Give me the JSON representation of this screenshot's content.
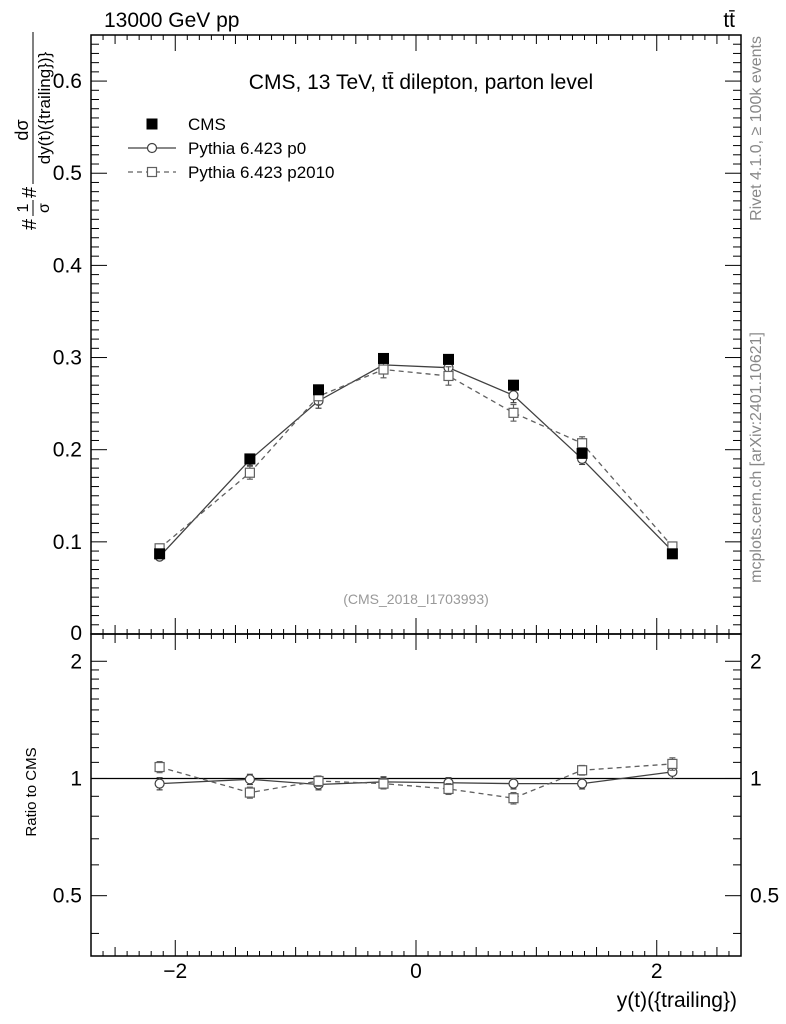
{
  "header": {
    "left": "13000 GeV pp",
    "right": "tt̄"
  },
  "side_labels": {
    "rivet": "Rivet 4.1.0, ≥ 100k events",
    "mcplots": "mcplots.cern.ch [arXiv:2401.10621]"
  },
  "chart_data": [
    {
      "type": "line",
      "title": "CMS, 13 TeV, tt̄ dilepton, parton level",
      "watermark": "(CMS_2018_I1703993)",
      "ylabel_prefix": "#",
      "ylabel_frac1_num": "1",
      "ylabel_frac1_den": "σ",
      "ylabel_mid": "#",
      "ylabel_frac2_num": "dσ",
      "ylabel_frac2_den": "dy(t)({trailing})}",
      "xlim": [
        -2.7,
        2.7
      ],
      "ylim": [
        0,
        0.65
      ],
      "xticks": [
        -2,
        0,
        2
      ],
      "xtick_labels": [
        "−2",
        "0",
        "2"
      ],
      "yticks": [
        0.1,
        0.2,
        0.3,
        0.4,
        0.5,
        0.6
      ],
      "ytick_labels": [
        "0.1",
        "0.2",
        "0.3",
        "0.4",
        "0.5",
        "0.6"
      ],
      "y_zero_label": "0",
      "legend_position": "top-left",
      "series": [
        {
          "name": "CMS",
          "style": "marker-only",
          "marker": "filled-square",
          "color": "#000000",
          "x": [
            -2.13,
            -1.38,
            -0.81,
            -0.27,
            0.27,
            0.81,
            1.38,
            2.13
          ],
          "values": [
            0.087,
            0.19,
            0.265,
            0.299,
            0.298,
            0.27,
            0.196,
            0.087
          ],
          "errors": [
            0.002,
            0.003,
            0.004,
            0.004,
            0.004,
            0.004,
            0.003,
            0.002
          ]
        },
        {
          "name": "Pythia 6.423 p0",
          "style": "solid",
          "marker": "open-circle",
          "color": "#404040",
          "x": [
            -2.13,
            -1.38,
            -0.81,
            -0.27,
            0.27,
            0.81,
            1.38,
            2.13
          ],
          "values": [
            0.084,
            0.189,
            0.253,
            0.292,
            0.289,
            0.259,
            0.19,
            0.09
          ],
          "errors": [
            0.003,
            0.006,
            0.008,
            0.009,
            0.009,
            0.008,
            0.006,
            0.004
          ]
        },
        {
          "name": "Pythia 6.423 p2010",
          "style": "dashed",
          "marker": "open-square",
          "color": "#606060",
          "x": [
            -2.13,
            -1.38,
            -0.81,
            -0.27,
            0.27,
            0.81,
            1.38,
            2.13
          ],
          "values": [
            0.093,
            0.175,
            0.258,
            0.287,
            0.28,
            0.24,
            0.207,
            0.095
          ],
          "errors": [
            0.003,
            0.007,
            0.009,
            0.009,
            0.01,
            0.009,
            0.007,
            0.004
          ]
        }
      ]
    },
    {
      "type": "line",
      "ylabel": "Ratio to CMS",
      "xlabel": "y(t)({trailing})",
      "xlim": [
        -2.7,
        2.7
      ],
      "ylim": [
        0.35,
        2.35
      ],
      "reference_line": 1,
      "xticks": [
        -2,
        0,
        2
      ],
      "xtick_labels": [
        "−2",
        "0",
        "2"
      ],
      "yticks": [
        0.5,
        1,
        2
      ],
      "ytick_labels": [
        "0.5",
        "1",
        "2"
      ],
      "series": [
        {
          "name": "Pythia 6.423 p0",
          "style": "solid",
          "marker": "open-circle",
          "color": "#404040",
          "x": [
            -2.13,
            -1.38,
            -0.81,
            -0.27,
            0.27,
            0.81,
            1.38,
            2.13
          ],
          "values": [
            0.97,
            0.995,
            0.965,
            0.98,
            0.975,
            0.97,
            0.97,
            1.04
          ],
          "errors": [
            0.035,
            0.03,
            0.03,
            0.03,
            0.03,
            0.03,
            0.03,
            0.04
          ]
        },
        {
          "name": "Pythia 6.423 p2010",
          "style": "dashed",
          "marker": "open-square",
          "color": "#606060",
          "x": [
            -2.13,
            -1.38,
            -0.81,
            -0.27,
            0.27,
            0.81,
            1.38,
            2.13
          ],
          "values": [
            1.07,
            0.92,
            0.985,
            0.97,
            0.94,
            0.89,
            1.05,
            1.09
          ],
          "errors": [
            0.035,
            0.03,
            0.03,
            0.03,
            0.03,
            0.03,
            0.03,
            0.04
          ]
        }
      ]
    }
  ]
}
